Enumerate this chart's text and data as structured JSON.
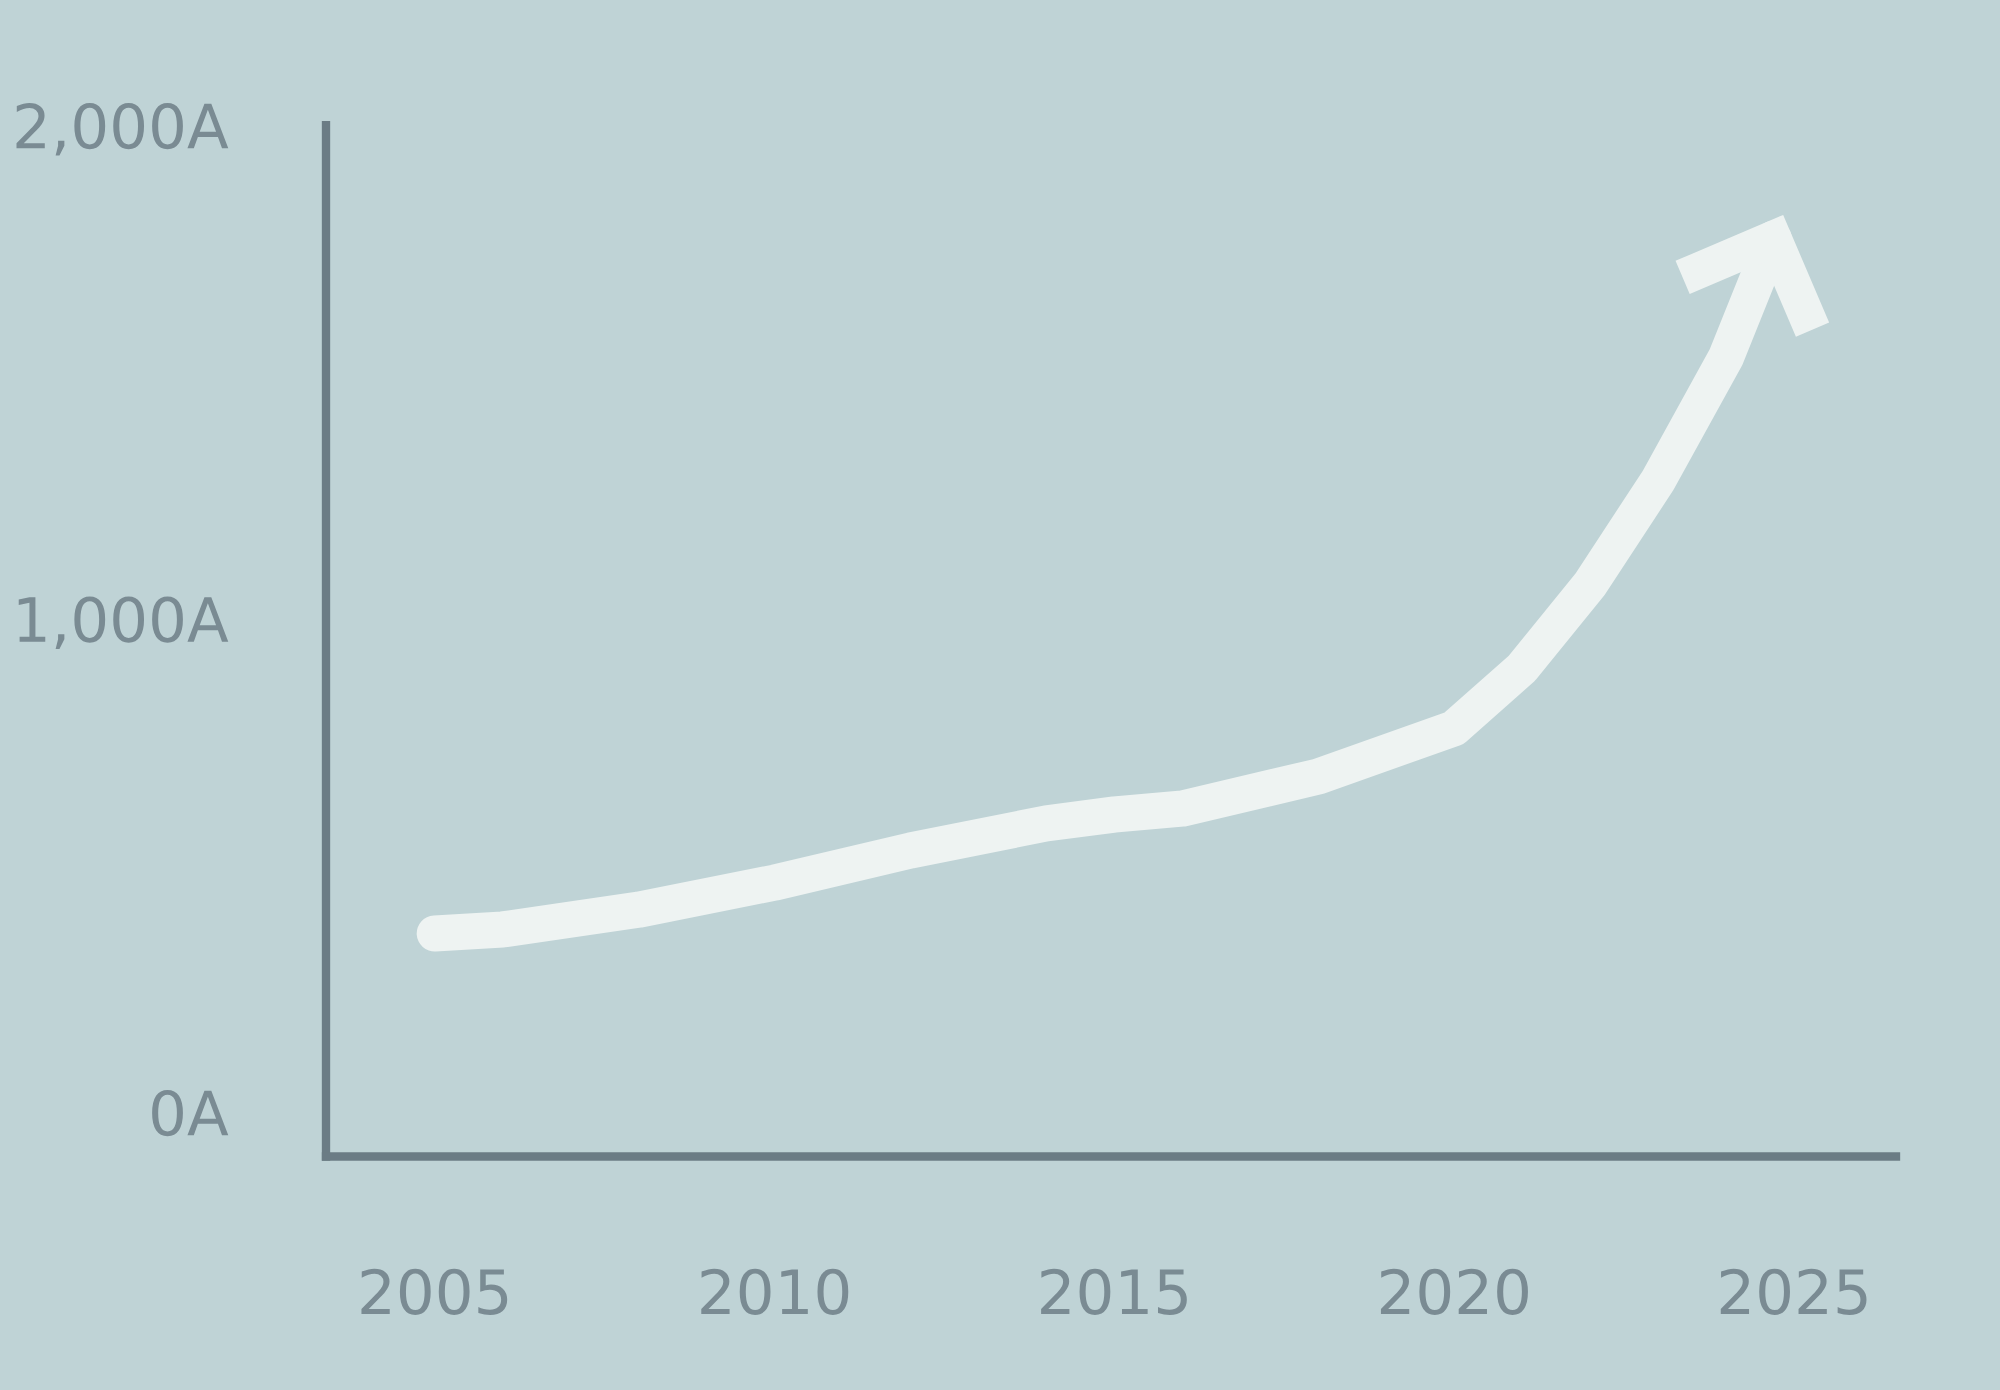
{
  "chart_data": {
    "type": "line",
    "x": [
      2005,
      2006,
      2008,
      2010,
      2012,
      2014,
      2015,
      2016,
      2018,
      2020,
      2021,
      2022,
      2023,
      2024,
      2024.7
    ],
    "series": [
      {
        "color": "#eef3f2",
        "values": [
          362,
          370,
          410,
          465,
          530,
          585,
          603,
          615,
          680,
          778,
          900,
          1070,
          1280,
          1530,
          1770
        ]
      }
    ],
    "xlim": [
      2003.4,
      2026.5
    ],
    "xticks": [
      2005,
      2010,
      2015,
      2020,
      2025
    ],
    "ylim": [
      -90,
      2000
    ],
    "yticks": [
      {
        "value": 0,
        "label": "0A"
      },
      {
        "value": 1000,
        "label": "1,000A"
      },
      {
        "value": 2000,
        "label": "2,000A"
      }
    ],
    "grid": false,
    "line_style": "solid"
  }
}
